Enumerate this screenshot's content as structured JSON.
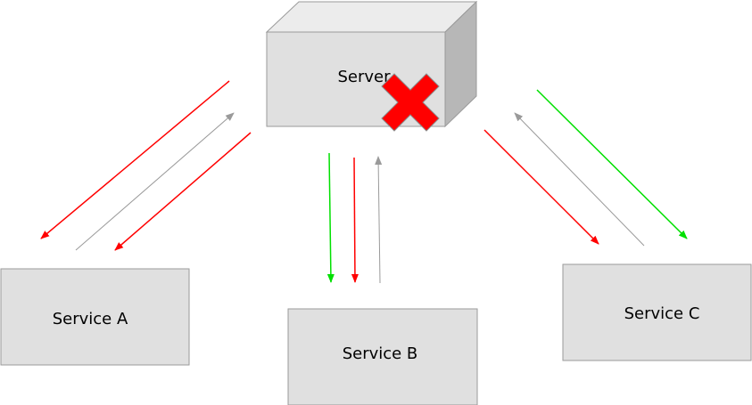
{
  "colors": {
    "box_fill": "#e0e0e0",
    "box_stroke": "#9a9a9a",
    "server_top": "#ececec",
    "server_side": "#b7b7b7",
    "failure_mark": "#ff0000",
    "arrow_red": "#ff0000",
    "arrow_green": "#00e000",
    "arrow_gray": "#9a9a9a"
  },
  "server": {
    "label": "Server",
    "status_icon": "red-x-failure-icon"
  },
  "services": [
    {
      "id": "a",
      "label": "Service A"
    },
    {
      "id": "b",
      "label": "Service B"
    },
    {
      "id": "c",
      "label": "Service C"
    }
  ]
}
